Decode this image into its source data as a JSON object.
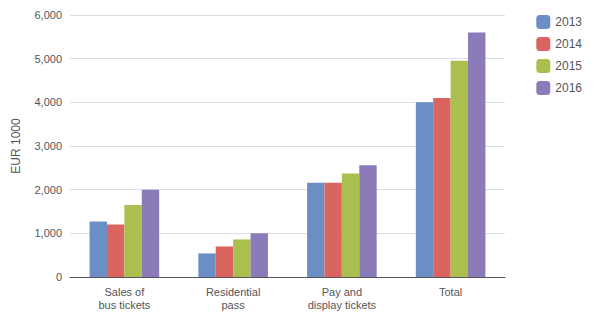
{
  "chart_data": {
    "type": "bar",
    "categories": [
      "Sales of\nbus tickets",
      "Residential\npass",
      "Pay and\ndisplay tickets",
      "Total"
    ],
    "series": [
      {
        "name": "2013",
        "color": "#6B8FC5",
        "values": [
          1270,
          540,
          2160,
          4000
        ]
      },
      {
        "name": "2014",
        "color": "#DA6560",
        "values": [
          1200,
          700,
          2160,
          4100
        ]
      },
      {
        "name": "2015",
        "color": "#AABF4E",
        "values": [
          1650,
          860,
          2370,
          4950
        ]
      },
      {
        "name": "2016",
        "color": "#8B7BB8",
        "values": [
          2000,
          1000,
          2560,
          5600
        ]
      }
    ],
    "ylabel": "EUR 1000",
    "ylim": [
      0,
      6000
    ],
    "yticks": [
      0,
      {
        "value": 1000,
        "label": "1,000"
      },
      {
        "value": 2000,
        "label": "2,000"
      },
      {
        "value": 3000,
        "label": "3,000"
      },
      {
        "value": 4000,
        "label": "4,000"
      },
      {
        "value": 5000,
        "label": "5,000"
      },
      {
        "value": 6000,
        "label": "6,000"
      }
    ],
    "grid": true,
    "legend": "upper right"
  }
}
